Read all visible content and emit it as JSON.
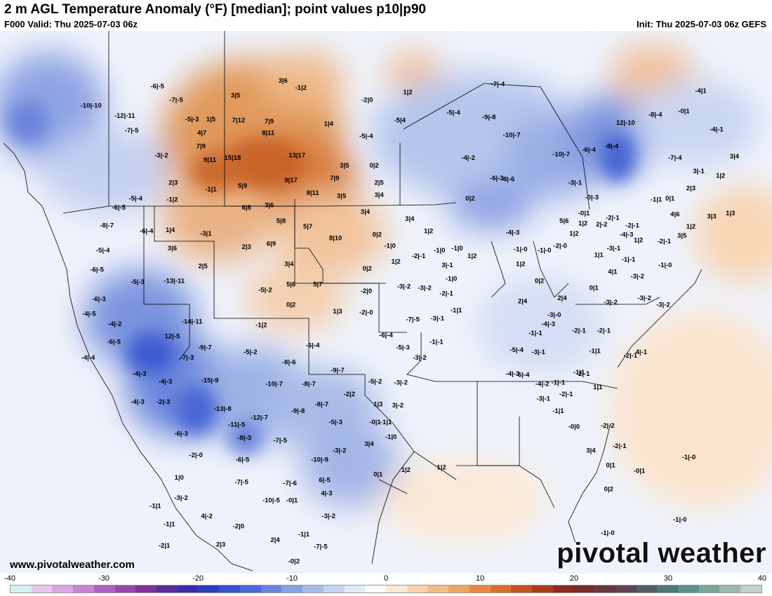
{
  "header": {
    "title": "2 m AGL Temperature Anomaly (°F) [median]; point values p10|p90",
    "valid": "F000 Valid: Thu 2025-07-03 06z",
    "init": "Init: Thu 2025-07-03 06z GEFS"
  },
  "footer": {
    "url": "www.pivotalweather.com",
    "brand": "pivotal weather"
  },
  "colorbar": {
    "ticks": [
      "-40",
      "-30",
      "-20",
      "-10",
      "0",
      "10",
      "20",
      "30",
      "40"
    ],
    "colors": [
      "#d6f0f8",
      "#e6c8ec",
      "#d8a6e0",
      "#c884d2",
      "#b060c0",
      "#9a44ac",
      "#80309a",
      "#5a2c9c",
      "#3a2ca8",
      "#2e3cc0",
      "#3650d0",
      "#4a68d8",
      "#6a84dc",
      "#8aa2e2",
      "#a8bce8",
      "#c6d4f0",
      "#e2eaf8",
      "#ffffff",
      "#fbe8d6",
      "#f8d4b0",
      "#f4bc88",
      "#f0a464",
      "#e88a44",
      "#d86e2c",
      "#c45420",
      "#a83c1c",
      "#8c2a1e",
      "#7a2a2e",
      "#6a3642",
      "#5c4654",
      "#506066",
      "#4c7a76",
      "#5e9088",
      "#7aa49c",
      "#9ab8b2",
      "#c2d0cc"
    ]
  },
  "point_values": [
    {
      "label": "-6|-5",
      "lon": -118.1,
      "lat": 52.9
    },
    {
      "label": "-10|-10",
      "lon": -124.8,
      "lat": 51.2
    },
    {
      "label": "-7|-5",
      "lon": -116.2,
      "lat": 51.7
    },
    {
      "label": "-12|-11",
      "lon": -121.4,
      "lat": 50.3
    },
    {
      "label": "-5|-3",
      "lon": -114.6,
      "lat": 50.0
    },
    {
      "label": "1|5",
      "lon": -112.7,
      "lat": 50.0
    },
    {
      "label": "3|5",
      "lon": -110.2,
      "lat": 52.1
    },
    {
      "label": "-7|-5",
      "lon": -120.7,
      "lat": 49.0
    },
    {
      "label": "4|7",
      "lon": -113.6,
      "lat": 48.8
    },
    {
      "label": "7|12",
      "lon": -109.9,
      "lat": 49.9
    },
    {
      "label": "7|9",
      "lon": -106.8,
      "lat": 49.8
    },
    {
      "label": "3|6",
      "lon": -105.4,
      "lat": 53.4
    },
    {
      "label": "-1|2",
      "lon": -103.6,
      "lat": 52.8
    },
    {
      "label": "8|11",
      "lon": -106.9,
      "lat": 48.8
    },
    {
      "label": "7|9",
      "lon": -113.7,
      "lat": 47.6
    },
    {
      "label": "-3|-2",
      "lon": -117.7,
      "lat": 46.8
    },
    {
      "label": "9|11",
      "lon": -112.8,
      "lat": 46.4
    },
    {
      "label": "15|18",
      "lon": -110.5,
      "lat": 46.6
    },
    {
      "label": "13|17",
      "lon": -104.0,
      "lat": 46.8
    },
    {
      "label": "1|4",
      "lon": -100.8,
      "lat": 49.6
    },
    {
      "label": "-2|0",
      "lon": -96.9,
      "lat": 51.7
    },
    {
      "label": "1|2",
      "lon": -92.8,
      "lat": 52.4
    },
    {
      "label": "-5|4",
      "lon": -93.6,
      "lat": 49.9
    },
    {
      "label": "-5|-4",
      "lon": -97.0,
      "lat": 48.5
    },
    {
      "label": "3|5",
      "lon": -99.2,
      "lat": 45.9
    },
    {
      "label": "0|2",
      "lon": -96.2,
      "lat": 45.9
    },
    {
      "label": "2|3",
      "lon": -116.5,
      "lat": 44.4
    },
    {
      "label": "-1|1",
      "lon": -112.7,
      "lat": 43.8
    },
    {
      "label": "5|9",
      "lon": -109.5,
      "lat": 44.1
    },
    {
      "label": "9|17",
      "lon": -104.6,
      "lat": 44.6
    },
    {
      "label": "7|9",
      "lon": -100.2,
      "lat": 44.8
    },
    {
      "label": "2|5",
      "lon": -95.7,
      "lat": 44.4
    },
    {
      "label": "-5|-4",
      "lon": -120.3,
      "lat": 43.0
    },
    {
      "label": "-1|2",
      "lon": -116.6,
      "lat": 42.9
    },
    {
      "label": "6|8",
      "lon": -109.1,
      "lat": 42.2
    },
    {
      "label": "3|6",
      "lon": -106.8,
      "lat": 42.4
    },
    {
      "label": "8|11",
      "lon": -102.4,
      "lat": 43.5
    },
    {
      "label": "3|5",
      "lon": -99.5,
      "lat": 43.2
    },
    {
      "label": "3|4",
      "lon": -95.7,
      "lat": 43.3
    },
    {
      "label": "-6|-5",
      "lon": -122.0,
      "lat": 42.2
    },
    {
      "label": "3|4",
      "lon": -97.1,
      "lat": 41.8
    },
    {
      "label": "3|4",
      "lon": -92.6,
      "lat": 41.2
    },
    {
      "label": "-8|-7",
      "lon": -123.2,
      "lat": 40.6
    },
    {
      "label": "-6|-4",
      "lon": -119.2,
      "lat": 40.1
    },
    {
      "label": "1|4",
      "lon": -116.8,
      "lat": 40.2
    },
    {
      "label": "-3|1",
      "lon": -113.2,
      "lat": 39.9
    },
    {
      "label": "5|8",
      "lon": -105.6,
      "lat": 41.0
    },
    {
      "label": "5|7",
      "lon": -102.9,
      "lat": 40.5
    },
    {
      "label": "1|2",
      "lon": -90.7,
      "lat": 40.1
    },
    {
      "label": "-5|-4",
      "lon": -123.6,
      "lat": 38.4
    },
    {
      "label": "3|6",
      "lon": -116.6,
      "lat": 38.6
    },
    {
      "label": "2|3",
      "lon": -109.1,
      "lat": 38.7
    },
    {
      "label": "6|9",
      "lon": -106.6,
      "lat": 39.0
    },
    {
      "label": "8|10",
      "lon": -100.1,
      "lat": 39.5
    },
    {
      "label": "0|2",
      "lon": -95.9,
      "lat": 39.8
    },
    {
      "label": "-1|0",
      "lon": -94.6,
      "lat": 38.8
    },
    {
      "label": "-6|-5",
      "lon": -124.2,
      "lat": 36.7
    },
    {
      "label": "2|5",
      "lon": -113.5,
      "lat": 37.0
    },
    {
      "label": "3|4",
      "lon": -104.8,
      "lat": 37.2
    },
    {
      "label": "0|2",
      "lon": -96.9,
      "lat": 36.8
    },
    {
      "label": "1|2",
      "lon": -94.0,
      "lat": 37.4
    },
    {
      "label": "-2|-1",
      "lon": -91.7,
      "lat": 37.9
    },
    {
      "label": "-1|0",
      "lon": -89.6,
      "lat": 38.4
    },
    {
      "label": "-1|0",
      "lon": -87.8,
      "lat": 38.6
    },
    {
      "label": "3|-1",
      "lon": -88.8,
      "lat": 37.1
    },
    {
      "label": "1|2",
      "lon": -86.3,
      "lat": 37.9
    },
    {
      "label": "-5|-3",
      "lon": -120.1,
      "lat": 35.6
    },
    {
      "label": "-13|-11",
      "lon": -116.4,
      "lat": 35.7
    },
    {
      "label": "5|6",
      "lon": -104.6,
      "lat": 35.4
    },
    {
      "label": "5|7",
      "lon": -101.9,
      "lat": 35.4
    },
    {
      "label": "-5|-2",
      "lon": -107.2,
      "lat": 34.9
    },
    {
      "label": "-6|-3",
      "lon": -124.0,
      "lat": 34.1
    },
    {
      "label": "0|2",
      "lon": -104.6,
      "lat": 33.6
    },
    {
      "label": "-2|0",
      "lon": -97.0,
      "lat": 34.8
    },
    {
      "label": "-3|-2",
      "lon": -93.2,
      "lat": 35.2
    },
    {
      "label": "-3|-2",
      "lon": -91.1,
      "lat": 35.1
    },
    {
      "label": "-1|0",
      "lon": -88.4,
      "lat": 35.9
    },
    {
      "label": "-2|-1",
      "lon": -88.9,
      "lat": 34.6
    },
    {
      "label": "-4|-5",
      "lon": -125.0,
      "lat": 32.8
    },
    {
      "label": "1|3",
      "lon": -99.9,
      "lat": 33.0
    },
    {
      "label": "-2|-0",
      "lon": -97.0,
      "lat": 32.9
    },
    {
      "label": "-1|1",
      "lon": -87.9,
      "lat": 33.1
    },
    {
      "label": "-7|-5",
      "lon": -92.3,
      "lat": 32.3
    },
    {
      "label": "-3|-1",
      "lon": -89.8,
      "lat": 32.4
    },
    {
      "label": "-4|-2",
      "lon": -122.4,
      "lat": 31.9
    },
    {
      "label": "-14|-11",
      "lon": -114.6,
      "lat": 32.1
    },
    {
      "label": "-1|2",
      "lon": -107.6,
      "lat": 31.8
    },
    {
      "label": "-6|-5",
      "lon": -122.5,
      "lat": 30.3
    },
    {
      "label": "12|-5",
      "lon": -116.6,
      "lat": 30.8
    },
    {
      "label": "-6|-4",
      "lon": -95.0,
      "lat": 30.9
    },
    {
      "label": "-6|-4",
      "lon": -102.4,
      "lat": 30.0
    },
    {
      "label": "-5|-3",
      "lon": -93.3,
      "lat": 29.8
    },
    {
      "label": "-9|-7",
      "lon": -113.3,
      "lat": 29.8
    },
    {
      "label": "-5|-2",
      "lon": -108.7,
      "lat": 29.4
    },
    {
      "label": "-4|-4",
      "lon": -125.1,
      "lat": 28.9
    },
    {
      "label": "-7|-3",
      "lon": -115.1,
      "lat": 28.9
    },
    {
      "label": "-3|-2",
      "lon": -91.6,
      "lat": 28.9
    },
    {
      "label": "-8|-6",
      "lon": -104.8,
      "lat": 28.5
    },
    {
      "label": "-9|-7",
      "lon": -99.9,
      "lat": 27.8
    },
    {
      "label": "-1|-1",
      "lon": -89.9,
      "lat": 30.3
    },
    {
      "label": "-4|-3",
      "lon": -119.9,
      "lat": 27.5
    },
    {
      "label": "-4|-3",
      "lon": -117.3,
      "lat": 26.8
    },
    {
      "label": "-15|-9",
      "lon": -112.8,
      "lat": 26.9
    },
    {
      "label": "-10|-7",
      "lon": -106.3,
      "lat": 26.6
    },
    {
      "label": "-8|-7",
      "lon": -102.8,
      "lat": 26.6
    },
    {
      "label": "-5|-2",
      "lon": -96.1,
      "lat": 26.8
    },
    {
      "label": "-3|-2",
      "lon": -93.5,
      "lat": 26.7
    },
    {
      "label": "-2|2",
      "lon": -98.7,
      "lat": 25.7
    },
    {
      "label": "-4|-3",
      "lon": -120.1,
      "lat": 25.0
    },
    {
      "label": "-2|-3",
      "lon": -117.5,
      "lat": 25.0
    },
    {
      "label": "-13|-8",
      "lon": -111.5,
      "lat": 24.4
    },
    {
      "label": "-9|-8",
      "lon": -103.9,
      "lat": 24.2
    },
    {
      "label": "-8|-7",
      "lon": -101.5,
      "lat": 24.8
    },
    {
      "label": "1|3",
      "lon": -95.8,
      "lat": 24.8
    },
    {
      "label": "3|-2",
      "lon": -93.8,
      "lat": 24.7
    },
    {
      "label": "-12|-7",
      "lon": -107.8,
      "lat": 23.6
    },
    {
      "label": "-11|-5",
      "lon": -110.1,
      "lat": 23.0
    },
    {
      "label": "-5|-3",
      "lon": -100.1,
      "lat": 23.2
    },
    {
      "label": "-0|1",
      "lon": -96.1,
      "lat": 23.2
    },
    {
      "label": "-1|1",
      "lon": -95.0,
      "lat": 23.2
    },
    {
      "label": "-6|-3",
      "lon": -115.7,
      "lat": 22.2
    },
    {
      "label": "-8|-3",
      "lon": -109.3,
      "lat": 21.8
    },
    {
      "label": "-7|-5",
      "lon": -105.7,
      "lat": 21.6
    },
    {
      "label": "-1|0",
      "lon": -94.5,
      "lat": 21.9
    },
    {
      "label": "3|4",
      "lon": -96.7,
      "lat": 21.3
    },
    {
      "label": "-3|-2",
      "lon": -99.7,
      "lat": 20.7
    },
    {
      "label": "-2|-0",
      "lon": -114.2,
      "lat": 20.3
    },
    {
      "label": "-6|-5",
      "lon": -109.5,
      "lat": 19.9
    },
    {
      "label": "-10|-9",
      "lon": -101.7,
      "lat": 19.9
    },
    {
      "label": "0|1",
      "lon": -95.8,
      "lat": 18.6
    },
    {
      "label": "1|2",
      "lon": -93.0,
      "lat": 19.0
    },
    {
      "label": "1|2",
      "lon": -89.4,
      "lat": 19.2
    },
    {
      "label": "1|0",
      "lon": -115.9,
      "lat": 18.3
    },
    {
      "label": "-7|-5",
      "lon": -109.6,
      "lat": 17.9
    },
    {
      "label": "-7|-6",
      "lon": -104.7,
      "lat": 17.8
    },
    {
      "label": "6|-5",
      "lon": -101.2,
      "lat": 18.1
    },
    {
      "label": "-3|-2",
      "lon": -115.7,
      "lat": 16.5
    },
    {
      "label": "-10|-5",
      "lon": -106.6,
      "lat": 16.3
    },
    {
      "label": "-0|1",
      "lon": -104.5,
      "lat": 16.3
    },
    {
      "label": "4|-3",
      "lon": -101.0,
      "lat": 16.9
    },
    {
      "label": "-1|1",
      "lon": -118.3,
      "lat": 15.8
    },
    {
      "label": "4|-2",
      "lon": -113.1,
      "lat": 14.9
    },
    {
      "label": "-3|-2",
      "lon": -100.8,
      "lat": 14.9
    },
    {
      "label": "-1|1",
      "lon": -116.9,
      "lat": 14.2
    },
    {
      "label": "-2|0",
      "lon": -109.9,
      "lat": 14.0
    },
    {
      "label": "2|4",
      "lon": -106.2,
      "lat": 12.8
    },
    {
      "label": "-1|1",
      "lon": -103.3,
      "lat": 13.3
    },
    {
      "label": "-2|1",
      "lon": -117.4,
      "lat": 12.3
    },
    {
      "label": "2|3",
      "lon": -111.7,
      "lat": 12.4
    },
    {
      "label": "-7|-5",
      "lon": -101.6,
      "lat": 12.2
    },
    {
      "label": "-0|2",
      "lon": -104.3,
      "lat": 10.9
    },
    {
      "label": "-7|-4",
      "lon": -83.7,
      "lat": 53.1
    },
    {
      "label": "-5|-4",
      "lon": -88.2,
      "lat": 50.6
    },
    {
      "label": "-9|-8",
      "lon": -84.6,
      "lat": 50.2
    },
    {
      "label": "-10|-7",
      "lon": -82.3,
      "lat": 48.6
    },
    {
      "label": "-4|-2",
      "lon": -86.7,
      "lat": 46.6
    },
    {
      "label": "-6|-3",
      "lon": -83.8,
      "lat": 44.8
    },
    {
      "label": "-8|-6",
      "lon": -82.7,
      "lat": 44.7
    },
    {
      "label": "0|2",
      "lon": -86.5,
      "lat": 43.0
    },
    {
      "label": "-4|-3",
      "lon": -82.2,
      "lat": 40.0
    },
    {
      "label": "-1|-0",
      "lon": -81.4,
      "lat": 38.5
    },
    {
      "label": "-1|-0",
      "lon": -79.0,
      "lat": 38.4
    },
    {
      "label": "-2|-0",
      "lon": -77.4,
      "lat": 38.8
    },
    {
      "label": "1|2",
      "lon": -81.4,
      "lat": 37.2
    },
    {
      "label": "0|2",
      "lon": -79.5,
      "lat": 35.7
    },
    {
      "label": "2|4",
      "lon": -81.2,
      "lat": 33.9
    },
    {
      "label": "2|4",
      "lon": -77.2,
      "lat": 34.2
    },
    {
      "label": "-3|-0",
      "lon": -78.0,
      "lat": 32.7
    },
    {
      "label": "-4|-3",
      "lon": -78.6,
      "lat": 31.9
    },
    {
      "label": "-1|-1",
      "lon": -79.9,
      "lat": 31.1
    },
    {
      "label": "-5|-4",
      "lon": -81.8,
      "lat": 29.6
    },
    {
      "label": "-3|-1",
      "lon": -79.6,
      "lat": 29.4
    },
    {
      "label": "-4|-3",
      "lon": -82.2,
      "lat": 27.5
    },
    {
      "label": "-6|-4",
      "lon": -81.2,
      "lat": 27.4
    },
    {
      "label": "-4|-2",
      "lon": -79.2,
      "lat": 26.6
    },
    {
      "label": "-1|-1",
      "lon": -77.6,
      "lat": 26.7
    },
    {
      "label": "-3|-1",
      "lon": -79.1,
      "lat": 25.3
    },
    {
      "label": "-2|-1",
      "lon": -76.8,
      "lat": 25.7
    },
    {
      "label": "-1|1",
      "lon": -77.6,
      "lat": 24.2
    },
    {
      "label": "-0|0",
      "lon": -76.0,
      "lat": 22.8
    },
    {
      "label": "-10|-7",
      "lon": -77.3,
      "lat": 46.9
    },
    {
      "label": "-6|-4",
      "lon": -74.5,
      "lat": 47.3
    },
    {
      "label": "-3|-1",
      "lon": -75.9,
      "lat": 44.4
    },
    {
      "label": "-0|-3",
      "lon": -74.2,
      "lat": 43.1
    },
    {
      "label": "-0|1",
      "lon": -75.0,
      "lat": 41.7
    },
    {
      "label": "5|6",
      "lon": -77.0,
      "lat": 41.0
    },
    {
      "label": "1|2",
      "lon": -75.1,
      "lat": 40.8
    },
    {
      "label": "1|2",
      "lon": -76.0,
      "lat": 39.9
    },
    {
      "label": "2|-2",
      "lon": -73.2,
      "lat": 40.7
    },
    {
      "label": "-2|-1",
      "lon": -72.1,
      "lat": 41.3
    },
    {
      "label": "-4|-3",
      "lon": -70.7,
      "lat": 39.8
    },
    {
      "label": "1|1",
      "lon": -73.5,
      "lat": 38.0
    },
    {
      "label": "-3|-1",
      "lon": -72.0,
      "lat": 38.6
    },
    {
      "label": "-1|-1",
      "lon": -70.5,
      "lat": 37.6
    },
    {
      "label": "4|1",
      "lon": -72.1,
      "lat": 36.5
    },
    {
      "label": "-3|-2",
      "lon": -69.6,
      "lat": 36.1
    },
    {
      "label": "0|1",
      "lon": -74.0,
      "lat": 35.1
    },
    {
      "label": "-3|-2",
      "lon": -72.3,
      "lat": 33.8
    },
    {
      "label": "-2|-1",
      "lon": -75.5,
      "lat": 31.3
    },
    {
      "label": "-2|-1",
      "lon": -73.0,
      "lat": 31.3
    },
    {
      "label": "-1|1",
      "lon": -73.9,
      "lat": 29.5
    },
    {
      "label": "-1|1",
      "lon": -75.5,
      "lat": 27.6
    },
    {
      "label": "-2|-1",
      "lon": -75.1,
      "lat": 27.5
    },
    {
      "label": "1|1",
      "lon": -73.6,
      "lat": 26.3
    },
    {
      "label": "-2|-2",
      "lon": -72.6,
      "lat": 22.9
    },
    {
      "label": "-2|-1",
      "lon": -71.4,
      "lat": 21.1
    },
    {
      "label": "3|4",
      "lon": -74.3,
      "lat": 20.7
    },
    {
      "label": "0|1",
      "lon": -72.3,
      "lat": 19.4
    },
    {
      "label": "0|2",
      "lon": -72.5,
      "lat": 17.3
    },
    {
      "label": "-0|1",
      "lon": -69.4,
      "lat": 18.9
    },
    {
      "label": "-1|-0",
      "lon": -65.3,
      "lat": 14.6
    },
    {
      "label": "-1|-0",
      "lon": -72.6,
      "lat": 13.4
    },
    {
      "label": "-4|1",
      "lon": -63.2,
      "lat": 52.5
    },
    {
      "label": "-4|-1",
      "lon": -61.6,
      "lat": 49.1
    },
    {
      "label": "12|-10",
      "lon": -70.8,
      "lat": 49.7
    },
    {
      "label": "-8|-4",
      "lon": -67.8,
      "lat": 50.4
    },
    {
      "label": "-0|1",
      "lon": -64.9,
      "lat": 50.7
    },
    {
      "label": "-8|-4",
      "lon": -72.2,
      "lat": 47.6
    },
    {
      "label": "-7|-4",
      "lon": -65.8,
      "lat": 46.6
    },
    {
      "label": "3|4",
      "lon": -59.8,
      "lat": 46.7
    },
    {
      "label": "3|-1",
      "lon": -63.4,
      "lat": 45.4
    },
    {
      "label": "1|2",
      "lon": -61.2,
      "lat": 45.0
    },
    {
      "label": "2|3",
      "lon": -64.2,
      "lat": 43.9
    },
    {
      "label": "-1|1",
      "lon": -67.7,
      "lat": 42.9
    },
    {
      "label": "0|1",
      "lon": -66.3,
      "lat": 43.0
    },
    {
      "label": "4|6",
      "lon": -65.8,
      "lat": 41.6
    },
    {
      "label": "3|3",
      "lon": -62.1,
      "lat": 41.4
    },
    {
      "label": "1|3",
      "lon": -60.2,
      "lat": 41.7
    },
    {
      "label": "1|2",
      "lon": -64.2,
      "lat": 40.5
    },
    {
      "label": "-2|-1",
      "lon": -66.9,
      "lat": 39.2
    },
    {
      "label": "3|5",
      "lon": -65.1,
      "lat": 39.7
    },
    {
      "label": "-1|-0",
      "lon": -66.8,
      "lat": 37.1
    },
    {
      "label": "1|2",
      "lon": -69.5,
      "lat": 39.3
    },
    {
      "label": "-2|-1",
      "lon": -70.1,
      "lat": 40.6
    },
    {
      "label": "-3|-2",
      "lon": -68.9,
      "lat": 34.2
    },
    {
      "label": "-3|-2",
      "lon": -67.0,
      "lat": 33.6
    },
    {
      "label": "4|-1",
      "lon": -69.2,
      "lat": 29.4
    },
    {
      "label": "-2|-1",
      "lon": -70.3,
      "lat": 29.1
    },
    {
      "label": "-1|-0",
      "lon": -64.4,
      "lat": 20.1
    }
  ]
}
